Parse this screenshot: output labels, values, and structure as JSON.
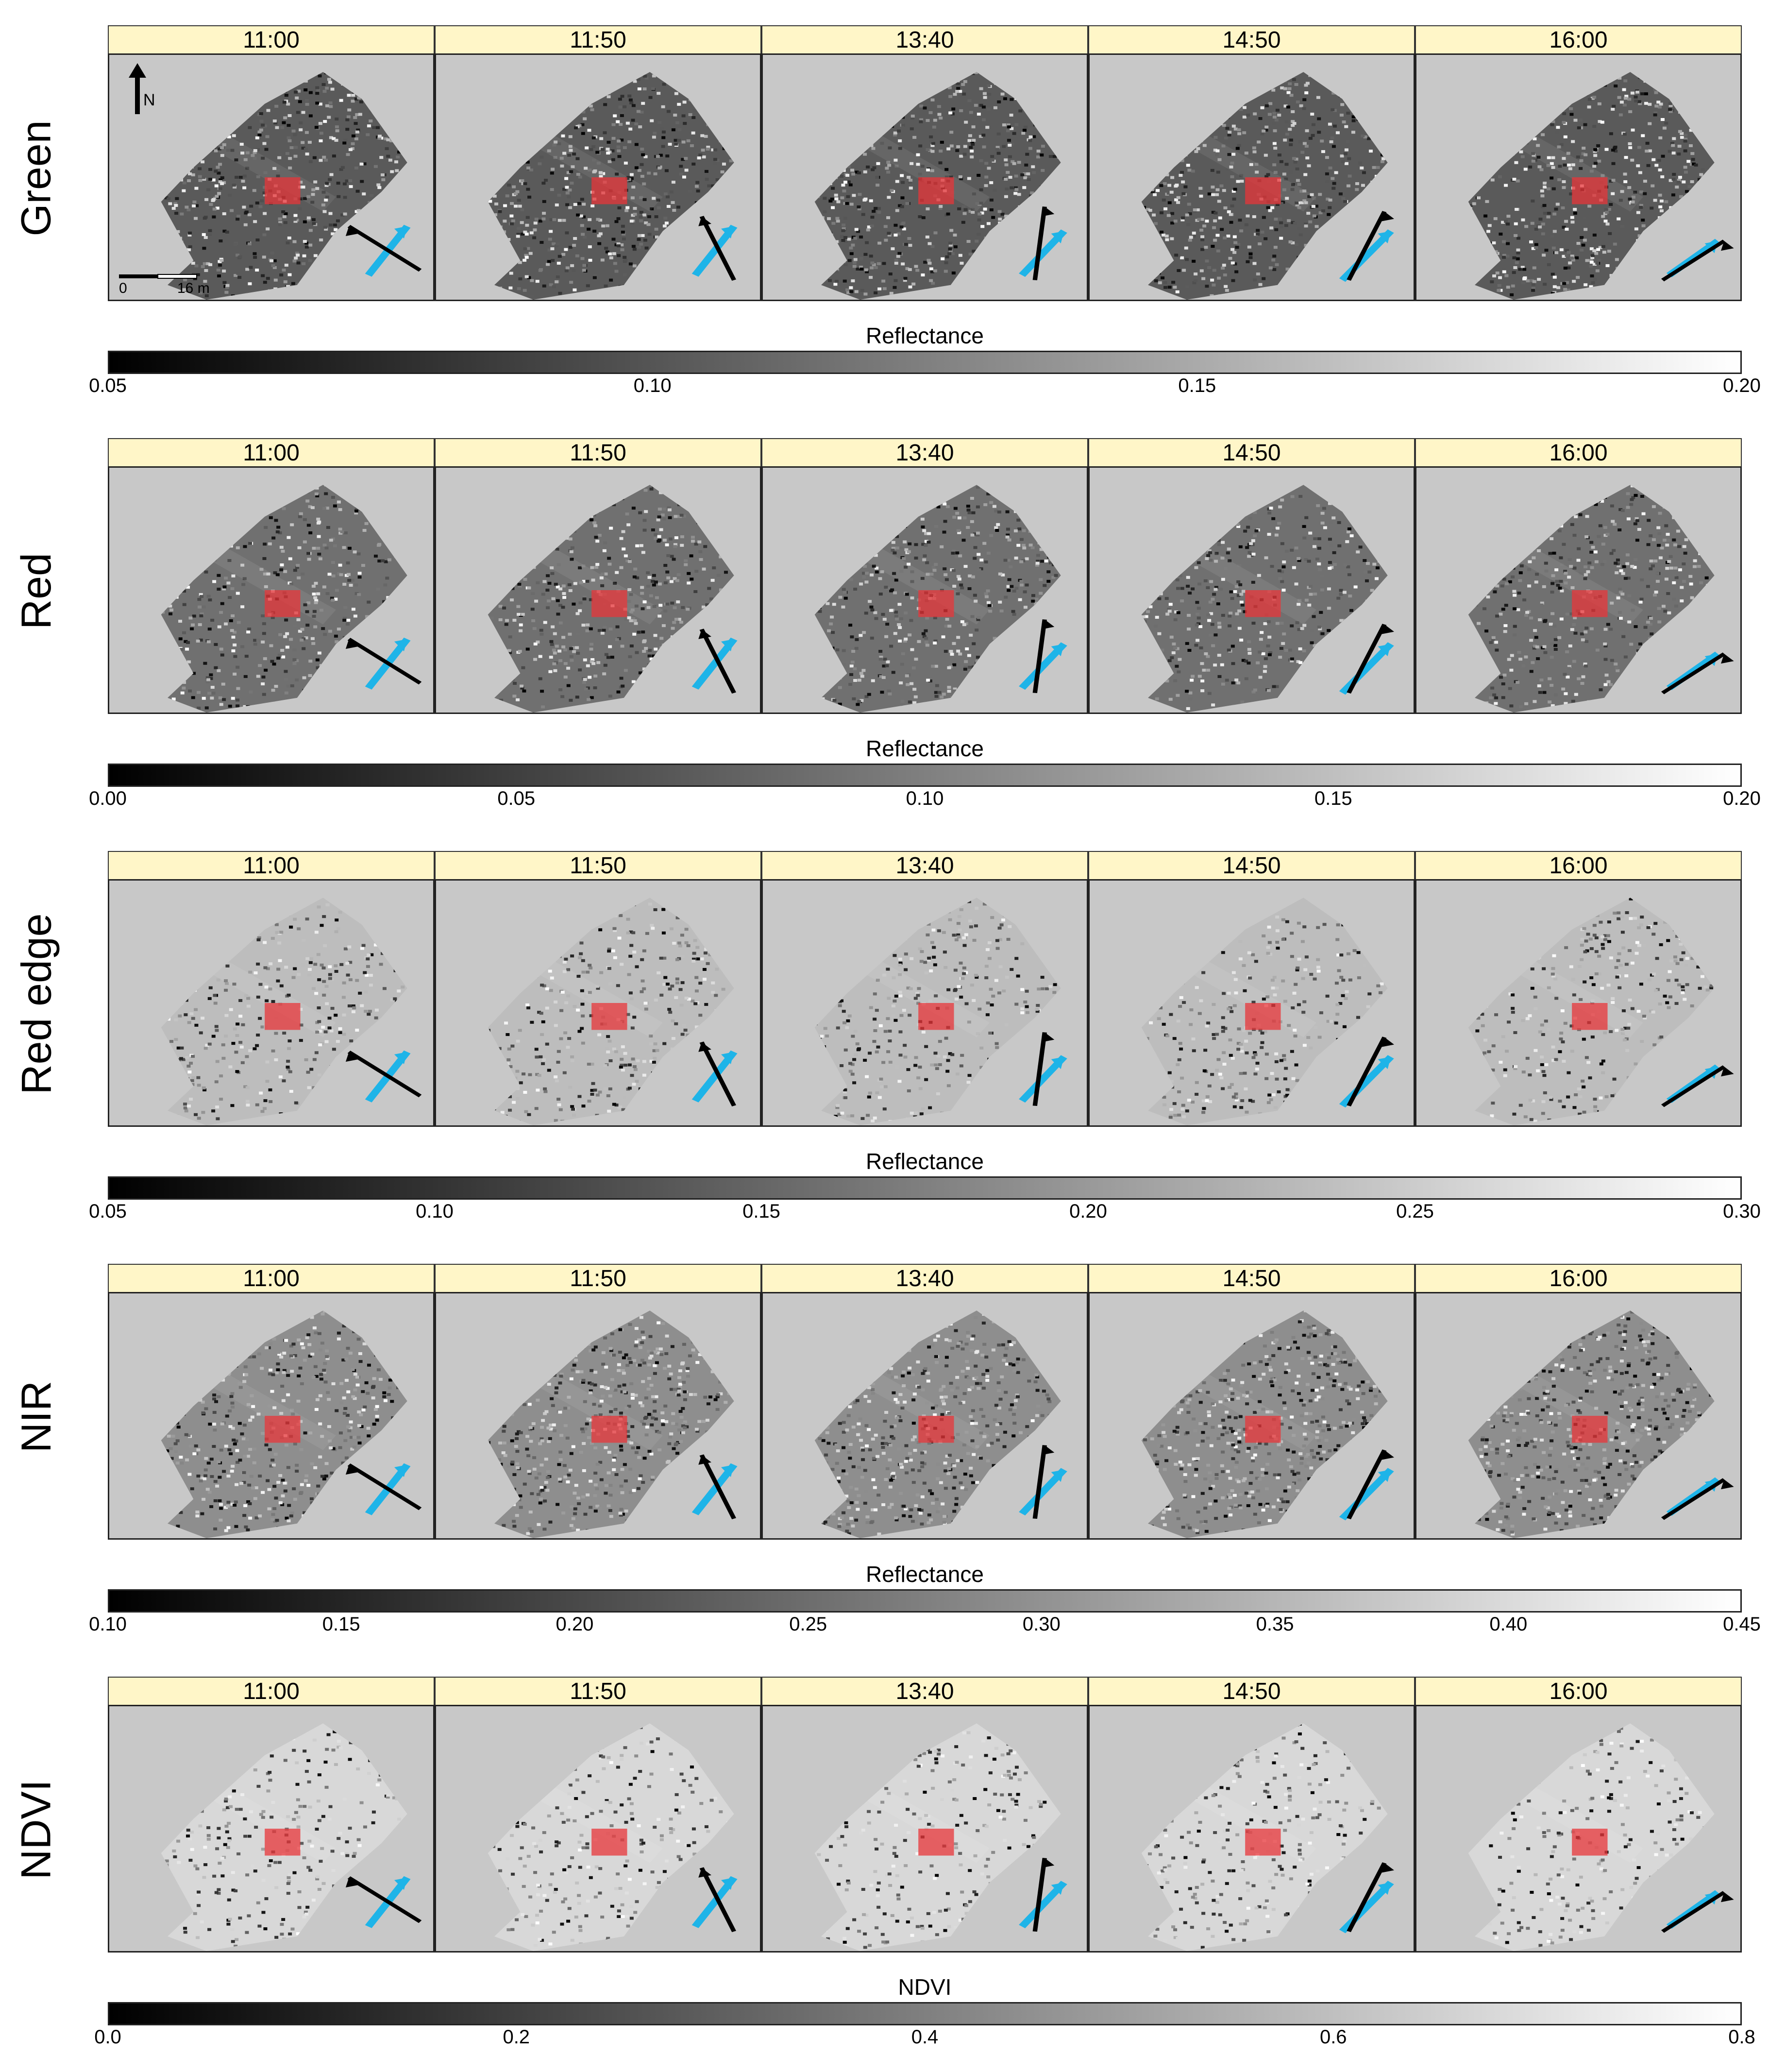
{
  "times": [
    "11:00",
    "11:50",
    "13:40",
    "14:50",
    "16:00"
  ],
  "north_label": "N",
  "scale_labels": [
    "0",
    "16 m"
  ],
  "rows": [
    {
      "label": "Green",
      "colorbar_title": "Reflectance",
      "ticks": [
        "0.05",
        "0.10",
        "0.15",
        "0.20"
      ]
    },
    {
      "label": "Red",
      "colorbar_title": "Reflectance",
      "ticks": [
        "0.00",
        "0.05",
        "0.10",
        "0.15",
        "0.20"
      ]
    },
    {
      "label": "Red edge",
      "colorbar_title": "Reflectance",
      "ticks": [
        "0.05",
        "0.10",
        "0.15",
        "0.20",
        "0.25",
        "0.30"
      ]
    },
    {
      "label": "NIR",
      "colorbar_title": "Reflectance",
      "ticks": [
        "0.10",
        "0.15",
        "0.20",
        "0.25",
        "0.30",
        "0.35",
        "0.40",
        "0.45"
      ]
    },
    {
      "label": "NDVI",
      "colorbar_title": "NDVI",
      "ticks": [
        "0.0",
        "0.2",
        "0.4",
        "0.6",
        "0.8"
      ]
    }
  ],
  "colors": {
    "strip": "#FFF6C8",
    "panel_bg": "#C8C8C8",
    "roi": "#E8363A",
    "sun_arrow": "#1EB4E8",
    "view_arrow": "#000000"
  }
}
